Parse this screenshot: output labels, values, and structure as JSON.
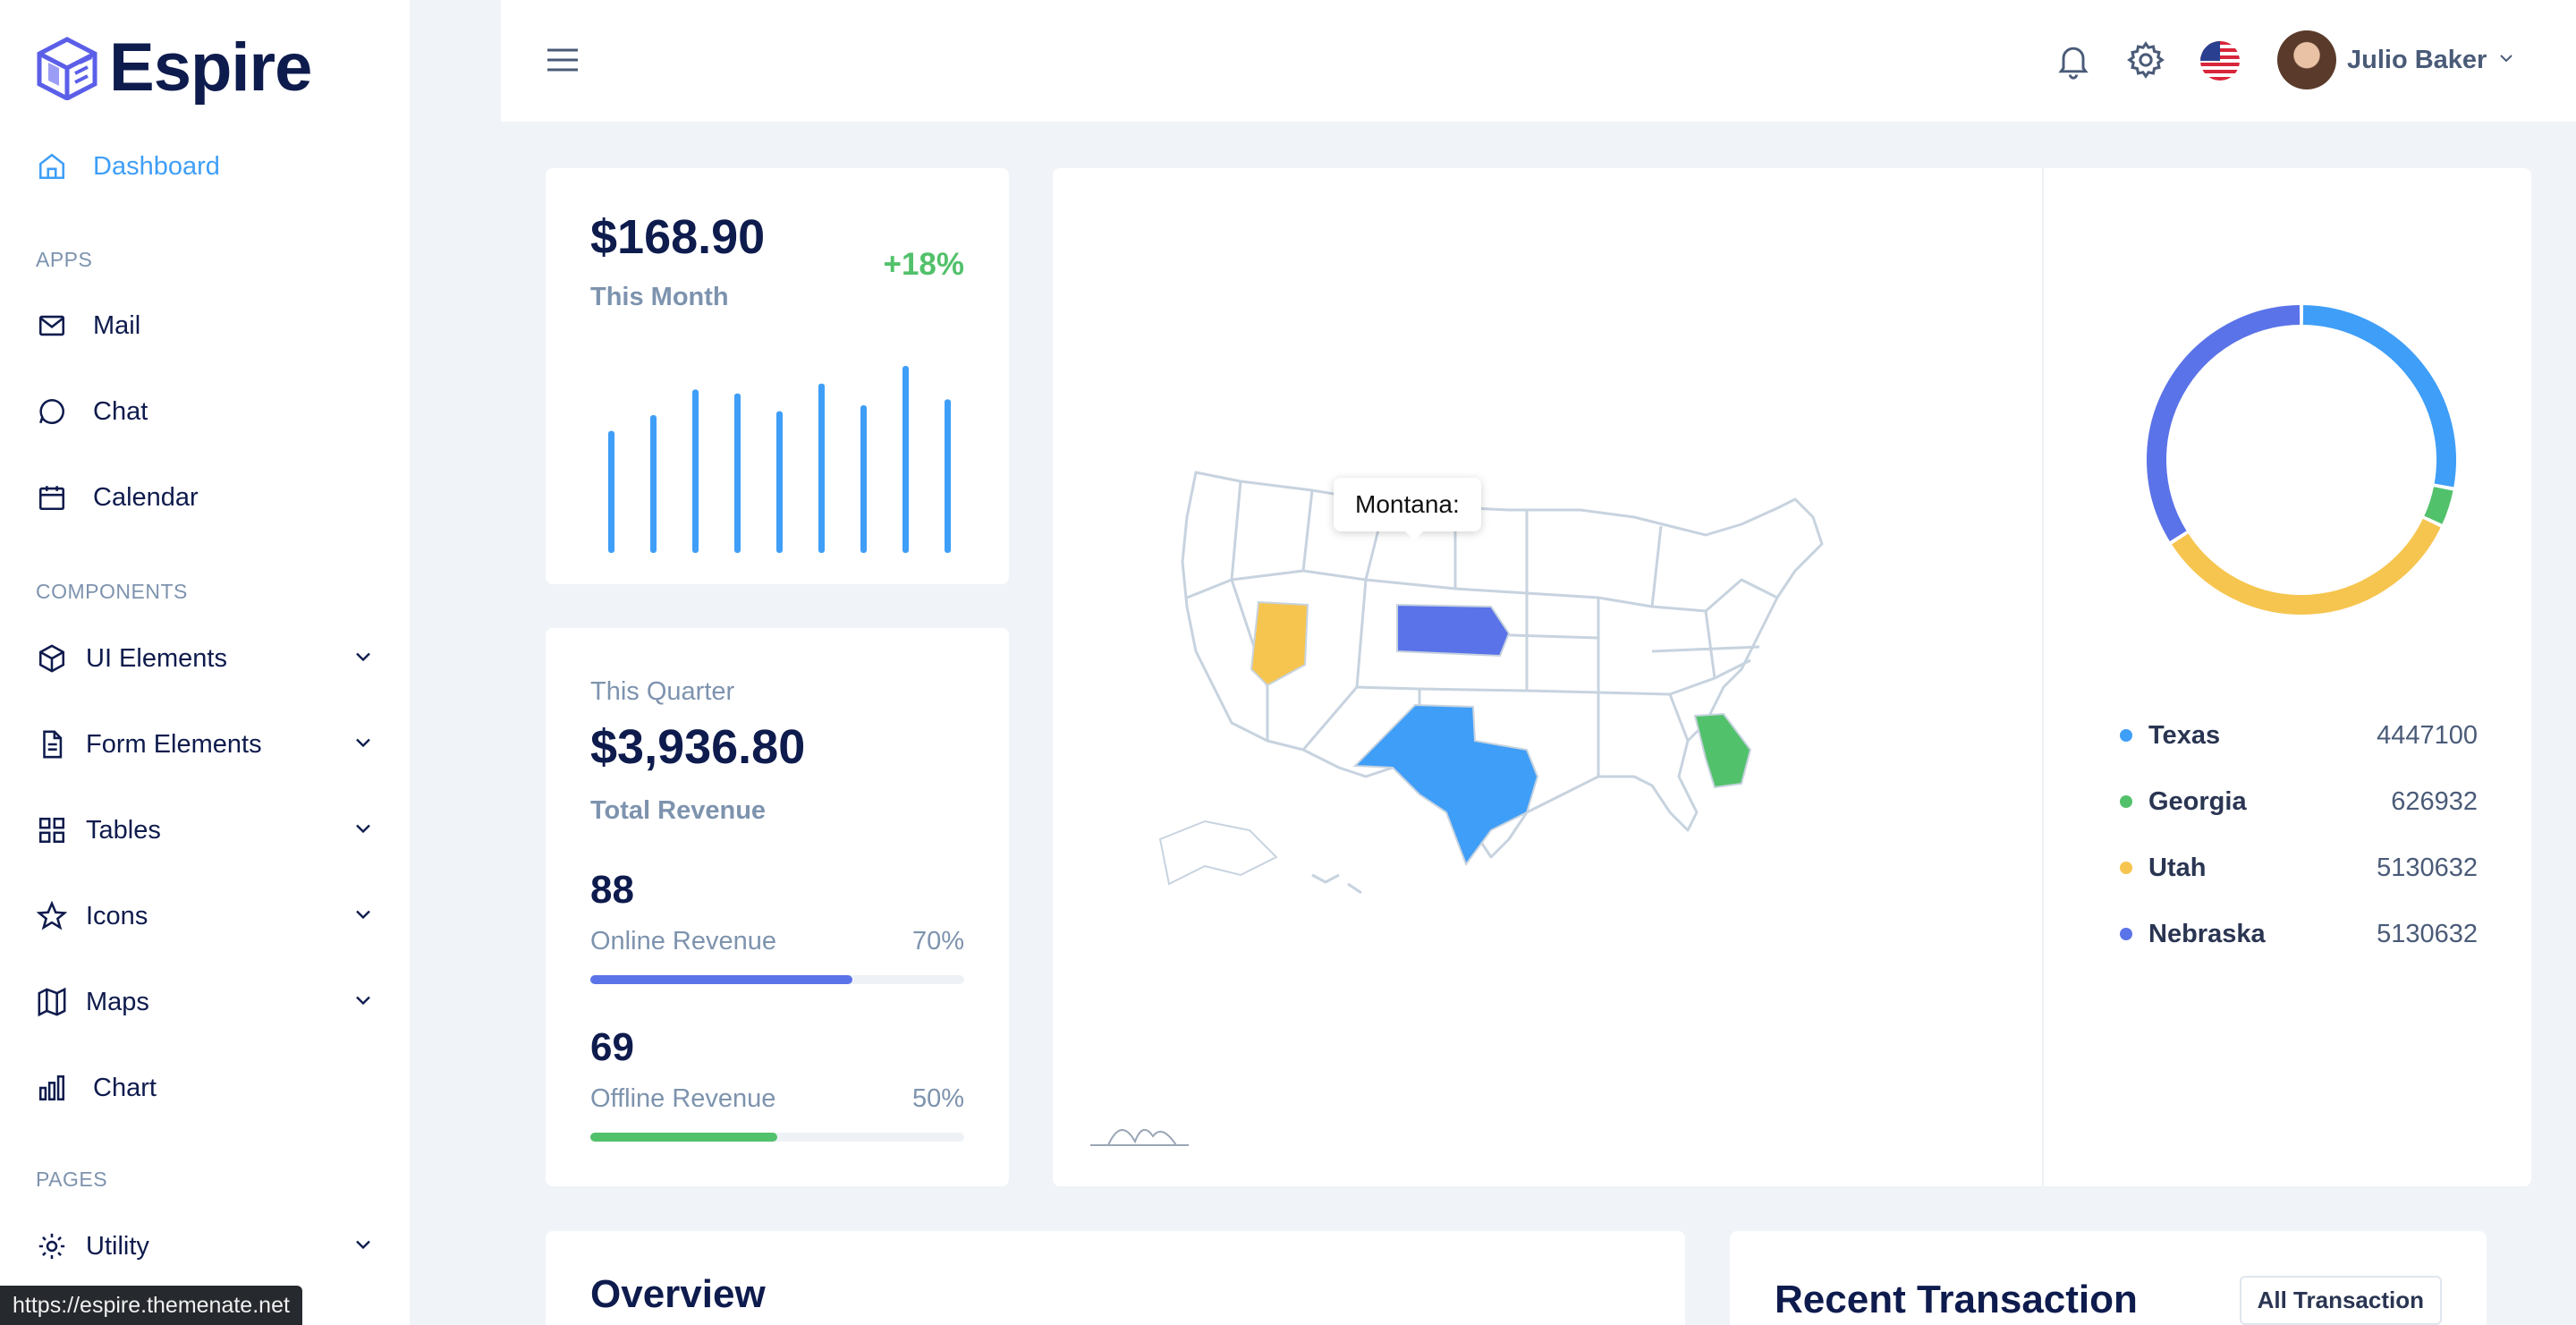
{
  "brand": {
    "name": "Espire"
  },
  "sidebar": {
    "dashboard": "Dashboard",
    "sections": {
      "apps": "APPS",
      "components": "COMPONENTS",
      "pages": "PAGES"
    },
    "apps": [
      "Mail",
      "Chat",
      "Calendar"
    ],
    "components": [
      "UI Elements",
      "Form Elements",
      "Tables",
      "Icons",
      "Maps",
      "Chart"
    ],
    "pages": [
      "Utility"
    ]
  },
  "header": {
    "user_name": "Julio Baker"
  },
  "monthly": {
    "amount": "$168.90",
    "label": "This Month",
    "change": "+18%",
    "bar_values": [
      62,
      70,
      83,
      81,
      72,
      86,
      75,
      95,
      78
    ],
    "bar_color": "#3f9ef7"
  },
  "quarter": {
    "label": "This Quarter",
    "amount": "$3,936.80",
    "sub": "Total Revenue",
    "online": {
      "value": "88",
      "label": "Online Revenue",
      "pct_text": "70%",
      "pct": 70,
      "color": "#5b73e8"
    },
    "offline": {
      "value": "69",
      "label": "Offline Revenue",
      "pct_text": "50%",
      "pct": 50,
      "color": "#52c16b"
    }
  },
  "map": {
    "tooltip": "Montana:",
    "states": [
      {
        "name": "Texas",
        "value": "4447100",
        "color": "#3f9ef7"
      },
      {
        "name": "Georgia",
        "value": "626932",
        "color": "#52c16b"
      },
      {
        "name": "Utah",
        "value": "5130632",
        "color": "#f6c54f"
      },
      {
        "name": "Nebraska",
        "value": "5130632",
        "color": "#5b73e8"
      }
    ]
  },
  "donut": {
    "segments": [
      {
        "name": "Texas",
        "value": 28,
        "color": "#3f9ef7"
      },
      {
        "name": "Georgia",
        "value": 4,
        "color": "#52c16b"
      },
      {
        "name": "Utah",
        "value": 34,
        "color": "#f6c54f"
      },
      {
        "name": "Nebraska",
        "value": 34,
        "color": "#5b73e8"
      }
    ]
  },
  "overview": {
    "title": "Overview"
  },
  "transactions": {
    "title": "Recent Transaction",
    "button": "All Transaction"
  },
  "status_bar": {
    "url": "https://espire.themenate.net"
  }
}
